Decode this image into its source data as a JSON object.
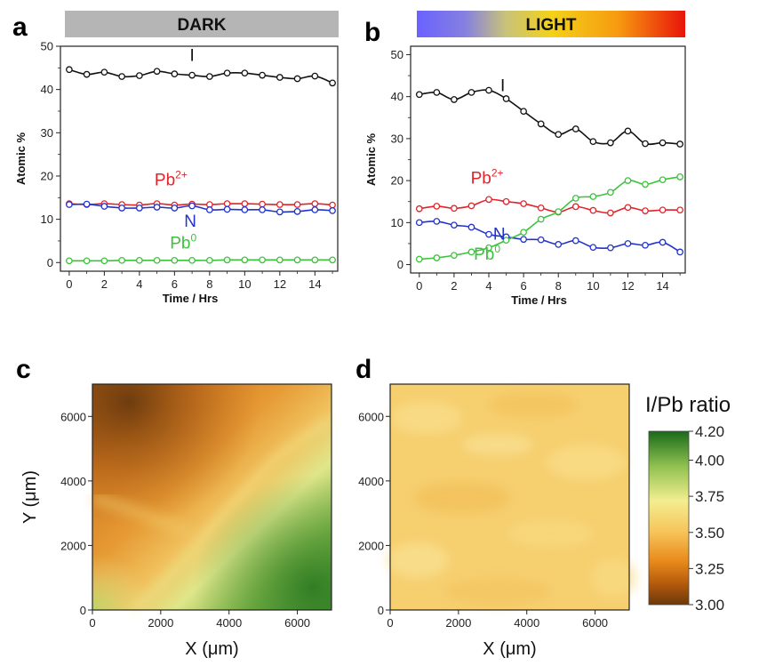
{
  "panels": {
    "a": {
      "letter": "a",
      "banner": "DARK"
    },
    "b": {
      "letter": "b",
      "banner": "LIGHT"
    },
    "c": {
      "letter": "c"
    },
    "d": {
      "letter": "d"
    }
  },
  "colors": {
    "I": "#111111",
    "Pb2": "#e2232a",
    "N": "#2233cc",
    "Pb0": "#3cc23c",
    "dark_banner": "#b5b5b5"
  },
  "chart_data": [
    {
      "id": "a",
      "type": "line",
      "xlabel": "Time / Hrs",
      "ylabel": "Atomic %",
      "xlim": [
        -0.5,
        15.3
      ],
      "ylim": [
        -2,
        50
      ],
      "xticks": [
        0,
        2,
        4,
        6,
        8,
        10,
        12,
        14
      ],
      "yticks": [
        0,
        10,
        20,
        30,
        40,
        50
      ],
      "x": [
        0,
        1,
        2,
        3,
        4,
        5,
        6,
        7,
        8,
        9,
        10,
        11,
        12,
        13,
        14,
        15
      ],
      "series": [
        {
          "name": "I",
          "color": "#111111",
          "values": [
            44.6,
            43.5,
            44.0,
            43.0,
            43.2,
            44.2,
            43.6,
            43.3,
            43.0,
            43.8,
            43.8,
            43.3,
            42.8,
            42.5,
            43.1,
            41.5
          ]
        },
        {
          "name": "Pb2+",
          "color": "#e2232a",
          "values": [
            13.6,
            13.4,
            13.6,
            13.4,
            13.3,
            13.6,
            13.3,
            13.5,
            13.4,
            13.6,
            13.6,
            13.5,
            13.4,
            13.4,
            13.6,
            13.3
          ]
        },
        {
          "name": "N",
          "color": "#2233cc",
          "values": [
            13.4,
            13.5,
            13.0,
            12.6,
            12.6,
            12.8,
            12.6,
            13.1,
            12.2,
            12.3,
            12.2,
            12.2,
            11.7,
            11.8,
            12.2,
            12.0
          ]
        },
        {
          "name": "Pb0",
          "color": "#3cc23c",
          "values": [
            0.4,
            0.4,
            0.4,
            0.5,
            0.5,
            0.5,
            0.5,
            0.5,
            0.5,
            0.6,
            0.6,
            0.6,
            0.6,
            0.6,
            0.6,
            0.6
          ]
        }
      ],
      "labels": [
        {
          "series": "I",
          "text": "I"
        },
        {
          "series": "Pb2+",
          "text": "Pb",
          "sup": "2+"
        },
        {
          "series": "N",
          "text": "N"
        },
        {
          "series": "Pb0",
          "text": "Pb",
          "sup": "0"
        }
      ]
    },
    {
      "id": "b",
      "type": "line",
      "xlabel": "Time / Hrs",
      "ylabel": "Atomic %",
      "xlim": [
        -0.5,
        15.3
      ],
      "ylim": [
        -2,
        52
      ],
      "xticks": [
        0,
        2,
        4,
        6,
        8,
        10,
        12,
        14
      ],
      "yticks": [
        0,
        10,
        20,
        30,
        40,
        50
      ],
      "x": [
        0,
        1,
        2,
        3,
        4,
        5,
        6,
        7,
        8,
        9,
        10,
        11,
        12,
        13,
        14,
        15
      ],
      "series": [
        {
          "name": "I",
          "color": "#111111",
          "values": [
            40.5,
            41.0,
            39.3,
            41.0,
            41.5,
            39.5,
            36.5,
            33.5,
            31.0,
            32.3,
            29.3,
            29.0,
            31.8,
            28.8,
            29.0,
            28.7
          ]
        },
        {
          "name": "Pb2+",
          "color": "#e2232a",
          "values": [
            13.3,
            13.9,
            13.4,
            14.0,
            15.5,
            15.0,
            14.5,
            13.5,
            12.5,
            13.8,
            12.9,
            12.3,
            13.6,
            12.8,
            13.0,
            13.0
          ]
        },
        {
          "name": "N",
          "color": "#2233cc",
          "values": [
            10.0,
            10.3,
            9.4,
            8.9,
            7.2,
            6.6,
            6.0,
            5.9,
            4.8,
            5.7,
            4.1,
            4.0,
            5.0,
            4.6,
            5.3,
            3.0
          ]
        },
        {
          "name": "Pb0",
          "color": "#3cc23c",
          "values": [
            1.3,
            1.6,
            2.2,
            3.0,
            4.0,
            5.8,
            7.7,
            10.8,
            12.6,
            15.8,
            16.2,
            17.2,
            20.0,
            19.1,
            20.2,
            20.9
          ]
        }
      ],
      "labels": [
        {
          "series": "I",
          "text": "I"
        },
        {
          "series": "Pb2+",
          "text": "Pb",
          "sup": "2+"
        },
        {
          "series": "N",
          "text": "N"
        },
        {
          "series": "Pb0",
          "text": "Pb",
          "sup": "0"
        }
      ]
    },
    {
      "id": "c",
      "type": "heatmap",
      "xlabel": "X (μm)",
      "ylabel": "Y (μm)",
      "xlim": [
        0,
        7000
      ],
      "ylim": [
        0,
        7000
      ],
      "xticks": [
        0,
        2000,
        4000,
        6000
      ],
      "yticks": [
        0,
        2000,
        4000,
        6000
      ],
      "description": "high I/Pb (green) toward lower-right, low (brown/orange) toward upper-left"
    },
    {
      "id": "d",
      "type": "heatmap",
      "xlabel": "X (μm)",
      "ylabel": "Y (μm)",
      "xlim": [
        0,
        7000
      ],
      "ylim": [
        0,
        7000
      ],
      "xticks": [
        0,
        2000,
        4000,
        6000
      ],
      "yticks": [
        0,
        2000,
        4000,
        6000
      ],
      "description": "nearly uniform ~3.45-3.55"
    }
  ],
  "colorbar": {
    "title": "I/Pb ratio",
    "min": 3.0,
    "max": 4.2,
    "ticks": [
      "4.20",
      "4.00",
      "3.75",
      "3.50",
      "3.25",
      "3.00"
    ],
    "tick_values": [
      4.2,
      4.0,
      3.75,
      3.5,
      3.25,
      3.0
    ]
  }
}
